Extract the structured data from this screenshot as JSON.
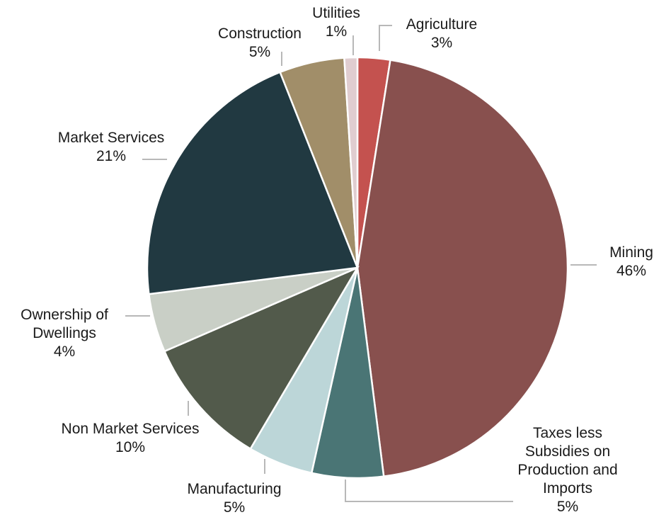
{
  "chart_data": {
    "type": "pie",
    "title": "",
    "slices": [
      {
        "label": "Agriculture",
        "pct_label": "3%",
        "value": 2.5,
        "color": "#c4524f"
      },
      {
        "label": "Mining",
        "pct_label": "46%",
        "value": 45.5,
        "color": "#88504e"
      },
      {
        "label": "Taxes less Subsidies on Production and Imports",
        "pct_label": "5%",
        "value": 5.5,
        "color": "#4a7575"
      },
      {
        "label": "Manufacturing",
        "pct_label": "5%",
        "value": 5,
        "color": "#bcd6d8"
      },
      {
        "label": "Non Market Services",
        "pct_label": "10%",
        "value": 10,
        "color": "#525a4b"
      },
      {
        "label": "Ownership of Dwellings",
        "pct_label": "4%",
        "value": 4.5,
        "color": "#c9cfc6"
      },
      {
        "label": "Market Services",
        "pct_label": "21%",
        "value": 21,
        "color": "#213941"
      },
      {
        "label": "Construction",
        "pct_label": "5%",
        "value": 5,
        "color": "#a18e69"
      },
      {
        "label": "Utilities",
        "pct_label": "1%",
        "value": 1,
        "color": "#e0cdd0"
      }
    ]
  }
}
